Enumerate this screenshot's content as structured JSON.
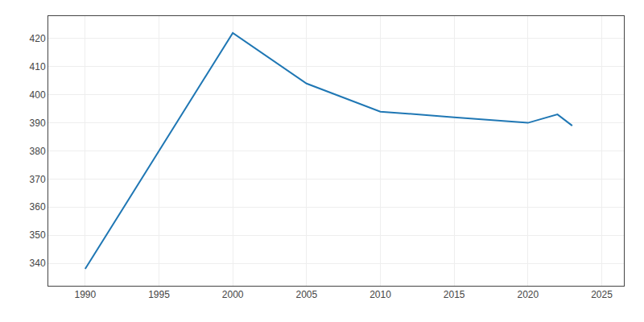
{
  "chart_data": {
    "type": "line",
    "x": [
      1990,
      2000,
      2005,
      2010,
      2015,
      2020,
      2022,
      2023
    ],
    "values": [
      338,
      422,
      404,
      394,
      392,
      390,
      393,
      389
    ],
    "xlim": [
      1987.5,
      2026.5
    ],
    "xticks": [
      1990,
      1995,
      2000,
      2005,
      2010,
      2015,
      2020,
      2025
    ],
    "ylim": [
      332,
      428
    ],
    "yticks": [
      340,
      350,
      360,
      370,
      380,
      390,
      400,
      410,
      420
    ],
    "grid": true
  }
}
